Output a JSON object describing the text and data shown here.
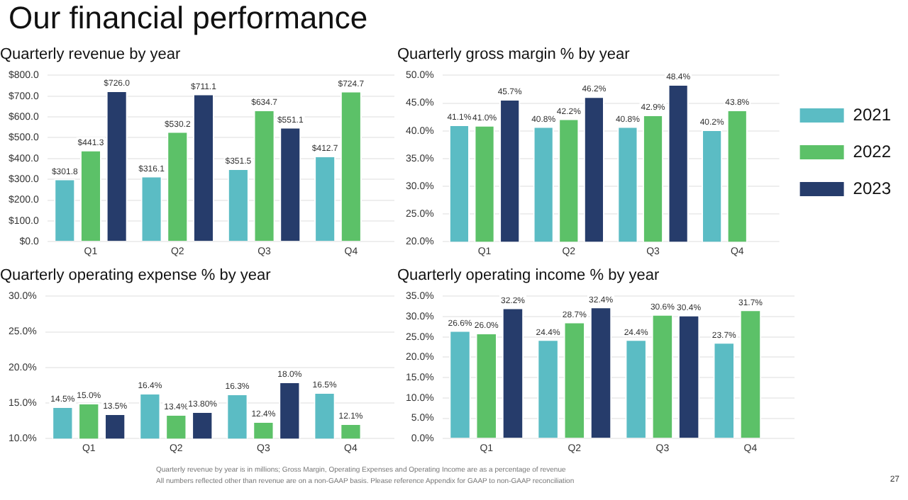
{
  "chart_data": [
    {
      "type": "other",
      "title": "Our financial performance",
      "annotations": [
        "Quarterly revenue by year is in millions; Gross Margin, Operating Expenses and Operating Income are as a percentage of revenue",
        "All numbers reflected other than revenue are on a non-GAAP basis.  Please reference Appendix for GAAP to non-GAAP reconciliation",
        "27"
      ]
    },
    {
      "type": "bar",
      "title": "Quarterly revenue by year",
      "categories": [
        "Q1",
        "Q2",
        "Q3",
        "Q4"
      ],
      "ylim": [
        0,
        800
      ],
      "yticks": [
        {
          "value": 0,
          "label": "$0.0"
        },
        {
          "value": 100,
          "label": "$100.0"
        },
        {
          "value": 200,
          "label": "$200.0"
        },
        {
          "value": 300,
          "label": "$300.0"
        },
        {
          "value": 400,
          "label": "$400.0"
        },
        {
          "value": 500,
          "label": "$500.0"
        },
        {
          "value": 600,
          "label": "$600.0"
        },
        {
          "value": 700,
          "label": "$700.0"
        },
        {
          "value": 800,
          "label": "$800.0"
        }
      ],
      "grid": "y",
      "series": [
        {
          "color": "#5bbcc4",
          "values": [
            301.8,
            316.1,
            351.5,
            412.7
          ],
          "value_labels": [
            "$301.8",
            "$316.1",
            "$351.5",
            "$412.7"
          ]
        },
        {
          "color": "#5cc168",
          "values": [
            441.3,
            530.2,
            634.7,
            724.7
          ],
          "value_labels": [
            "$441.3",
            "$530.2",
            "$634.7",
            "$724.7"
          ]
        },
        {
          "color": "#263c6b",
          "values": [
            726.0,
            711.1,
            551.1,
            null
          ],
          "value_labels": [
            "$726.0",
            "$711.1",
            "$551.1",
            null
          ]
        }
      ]
    },
    {
      "type": "bar",
      "title": "Quarterly gross margin % by year",
      "categories": [
        "Q1",
        "Q2",
        "Q3",
        "Q4"
      ],
      "ylim": [
        20,
        50
      ],
      "yticks": [
        {
          "value": 20,
          "label": "20.0%"
        },
        {
          "value": 25,
          "label": "25.0%"
        },
        {
          "value": 30,
          "label": "30.0%"
        },
        {
          "value": 35,
          "label": "35.0%"
        },
        {
          "value": 40,
          "label": "40.0%"
        },
        {
          "value": 45,
          "label": "45.0%"
        },
        {
          "value": 50,
          "label": "50.0%"
        }
      ],
      "grid": "y",
      "legend": "right",
      "series": [
        {
          "name": "2021",
          "color": "#5bbcc4",
          "values": [
            41.1,
            40.8,
            40.8,
            40.2
          ],
          "value_labels": [
            "41.1%",
            "40.8%",
            "40.8%",
            "40.2%"
          ]
        },
        {
          "name": "2022",
          "color": "#5cc168",
          "values": [
            41.0,
            42.2,
            42.9,
            43.8
          ],
          "value_labels": [
            "41.0%",
            "42.2%",
            "42.9%",
            "43.8%"
          ]
        },
        {
          "name": "2023",
          "color": "#263c6b",
          "values": [
            45.7,
            46.2,
            48.4,
            null
          ],
          "value_labels": [
            "45.7%",
            "46.2%",
            "48.4%",
            null
          ]
        }
      ]
    },
    {
      "type": "bar",
      "title": "Quarterly operating expense % by year",
      "categories": [
        "Q1",
        "Q2",
        "Q3",
        "Q4"
      ],
      "ylim": [
        10,
        30
      ],
      "yticks": [
        {
          "value": 10,
          "label": "10.0%"
        },
        {
          "value": 15,
          "label": "15.0%"
        },
        {
          "value": 20,
          "label": "20.0%"
        },
        {
          "value": 25,
          "label": "25.0%"
        },
        {
          "value": 30,
          "label": "30.0%"
        }
      ],
      "grid": "y",
      "series": [
        {
          "color": "#5bbcc4",
          "values": [
            14.5,
            16.4,
            16.3,
            16.5
          ],
          "value_labels": [
            "14.5%",
            "16.4%",
            "16.3%",
            "16.5%"
          ]
        },
        {
          "color": "#5cc168",
          "values": [
            15.0,
            13.4,
            12.4,
            12.1
          ],
          "value_labels": [
            "15.0%",
            "13.4%",
            "12.4%",
            "12.1%"
          ]
        },
        {
          "color": "#263c6b",
          "values": [
            13.5,
            13.8,
            18.0,
            null
          ],
          "value_labels": [
            "13.5%",
            "13.80%",
            "18.0%",
            null
          ]
        }
      ]
    },
    {
      "type": "bar",
      "title": "Quarterly operating income % by year",
      "categories": [
        "Q1",
        "Q2",
        "Q3",
        "Q4"
      ],
      "ylim": [
        0,
        35
      ],
      "yticks": [
        {
          "value": 0,
          "label": "0.0%"
        },
        {
          "value": 5,
          "label": "5.0%"
        },
        {
          "value": 10,
          "label": "10.0%"
        },
        {
          "value": 15,
          "label": "15.0%"
        },
        {
          "value": 20,
          "label": "20.0%"
        },
        {
          "value": 25,
          "label": "25.0%"
        },
        {
          "value": 30,
          "label": "30.0%"
        },
        {
          "value": 35,
          "label": "35.0%"
        }
      ],
      "grid": "y",
      "series": [
        {
          "color": "#5bbcc4",
          "values": [
            26.6,
            24.4,
            24.4,
            23.7
          ],
          "value_labels": [
            "26.6%",
            "24.4%",
            "24.4%",
            "23.7%"
          ]
        },
        {
          "color": "#5cc168",
          "values": [
            26.0,
            28.7,
            30.6,
            31.7
          ],
          "value_labels": [
            "26.0%",
            "28.7%",
            "30.6%",
            "31.7%"
          ]
        },
        {
          "color": "#263c6b",
          "values": [
            32.2,
            32.4,
            30.4,
            null
          ],
          "value_labels": [
            "32.2%",
            "32.4%",
            "30.4%",
            null
          ]
        }
      ]
    }
  ]
}
